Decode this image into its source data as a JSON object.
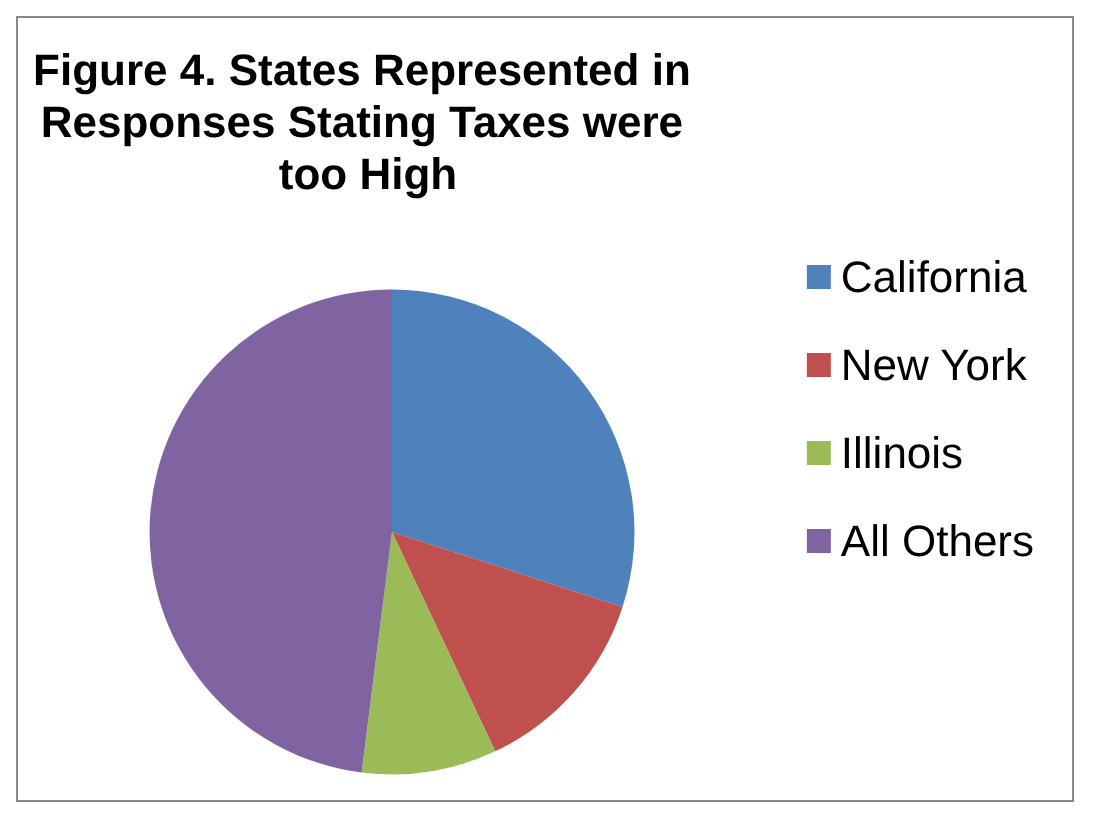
{
  "chart_data": {
    "type": "pie",
    "title": "Figure 4. States Represented in Responses Stating Taxes were too High",
    "categories": [
      "California",
      "New York",
      "Illinois",
      "All Others"
    ],
    "values": [
      30,
      13,
      9,
      48
    ],
    "colors": [
      "#4f81bd",
      "#c0504d",
      "#9bbb59",
      "#8064a2"
    ],
    "legend": "right"
  }
}
